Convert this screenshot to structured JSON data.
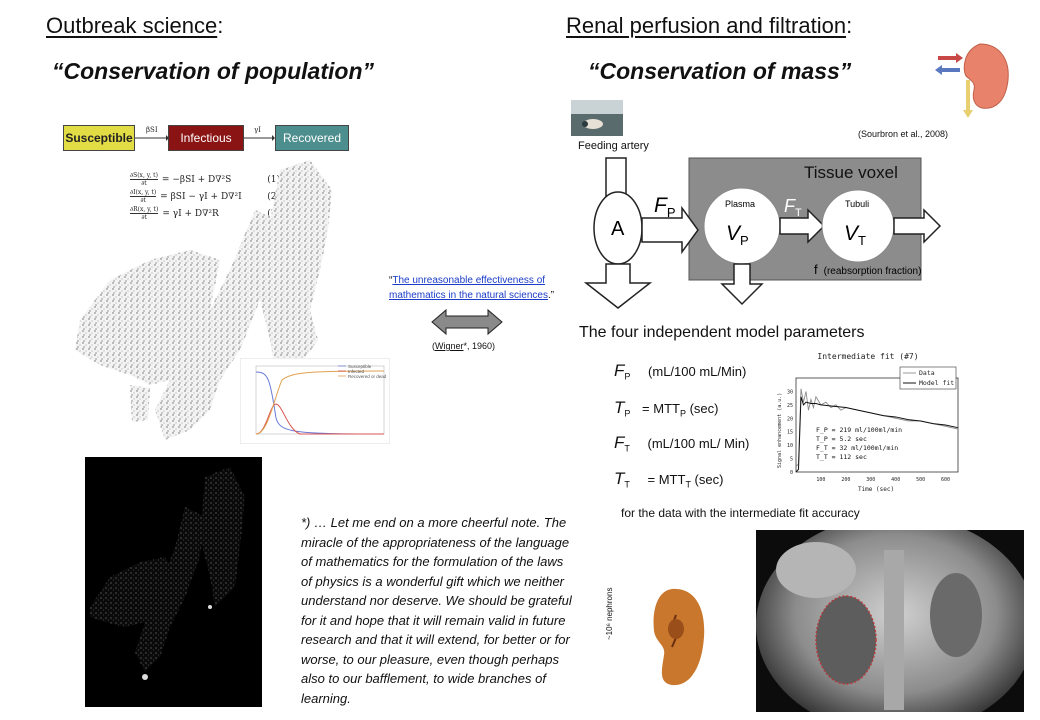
{
  "left": {
    "heading": "Outbreak science",
    "heading_suffix": ":",
    "subheading": "“Conservation of population”",
    "model": {
      "susceptible": "Susceptible",
      "infectious": "Infectious",
      "recovered": "Recovered",
      "beta_label": "βSI",
      "gamma_label": "γI",
      "colors": {
        "susceptible": "#e3dd45",
        "infectious": "#8a1313",
        "recovered": "#4d8e8e"
      }
    },
    "equations": [
      {
        "num": "∂S(x, y, t)",
        "den": "∂t",
        "rhs": "= −βSI + D∇²S",
        "tag": "(1)"
      },
      {
        "num": "∂I(x, y, t)",
        "den": "∂t",
        "rhs": "= βSI − γI + D∇²I",
        "tag": "(2)"
      },
      {
        "num": "∂R(x, y, t)",
        "den": "∂t",
        "rhs": "= γI + D∇²R",
        "tag": "(3)"
      }
    ],
    "sir_legend": [
      "Susceptible",
      "Infected",
      "Recovered or dead"
    ]
  },
  "middle": {
    "quote_open": "“",
    "quote_link": "The unreasonable effectiveness of mathematics in the natural sciences",
    "quote_close": ".”",
    "citation_open": "(",
    "citation_name": "Wigner",
    "citation_rest": "*, 1960)",
    "footnote": "*) … Let me end on a more cheerful note. The miracle of the appropriateness of the language of mathematics for the formulation of the laws of physics is a wonderful gift which we neither understand nor deserve. We should be grateful for it and hope that it will remain valid in future research and that it will extend, for better or for worse, to our pleasure, even though perhaps also to our bafflement, to wide branches of learning."
  },
  "right": {
    "heading": "Renal perfusion and filtration",
    "heading_suffix": ":",
    "subheading": "“Conservation of mass”",
    "citation": "(Sourbron et al., 2008)",
    "diagram": {
      "feeding_artery": "Feeding artery",
      "A": "A",
      "FP": "F",
      "FP_sub": "P",
      "tissue_voxel": "Tissue voxel",
      "plasma": "Plasma",
      "VP": "V",
      "VP_sub": "P",
      "FT": "F",
      "FT_sub": "T",
      "tubuli": "Tubuli",
      "VT": "V",
      "VT_sub": "T",
      "f_label": "f",
      "reabsorption": "(reabsorption fraction)"
    },
    "params_title": "The four independent model parameters",
    "params": [
      {
        "sym": "F",
        "sub": "P",
        "text": "(mL/100 mL/Min)"
      },
      {
        "sym": "T",
        "sub": "P",
        "text": "= MTT",
        "text_sub": "P",
        "text_after": " (sec)"
      },
      {
        "sym": "F",
        "sub": "T",
        "text": "(mL/100 mL/ Min)"
      },
      {
        "sym": "T",
        "sub": "T",
        "text": "= MTT",
        "text_sub": "T",
        "text_after": " (sec)"
      }
    ],
    "params_footer": "for the data with the intermediate fit accuracy",
    "nephrons_label": "~10⁶ nephrons"
  },
  "chart_data": {
    "type": "line",
    "title": "Intermediate fit (#7)",
    "xlabel": "Time (sec)",
    "ylabel": "Signal enhancement (a.u.)",
    "xlim": [
      0,
      650
    ],
    "ylim": [
      0,
      35
    ],
    "x_ticks": [
      "100",
      "200",
      "300",
      "400",
      "500",
      "600"
    ],
    "y_ticks": [
      "0",
      "5",
      "10",
      "15",
      "20",
      "25",
      "30"
    ],
    "legend": [
      "Data",
      "Model fit"
    ],
    "annotations": [
      "F_P = 219 ml/100ml/min",
      "T_P = 5.2 sec",
      "F_T = 32 ml/100ml/min",
      "T_T = 112 sec"
    ],
    "series": [
      {
        "name": "Data",
        "x": [
          0,
          10,
          20,
          30,
          40,
          50,
          60,
          70,
          80,
          100,
          120,
          140,
          160,
          180,
          200,
          250,
          300,
          350,
          400,
          450,
          500,
          550,
          600,
          650
        ],
        "y": [
          2,
          3,
          31,
          26,
          30,
          23,
          27,
          24,
          28,
          25,
          26,
          24,
          25,
          23,
          24,
          23,
          22,
          21,
          20,
          19,
          19,
          18,
          17,
          16
        ]
      },
      {
        "name": "Model fit",
        "x": [
          0,
          10,
          20,
          30,
          40,
          60,
          80,
          100,
          150,
          200,
          250,
          300,
          350,
          400,
          450,
          500,
          550,
          600,
          650
        ],
        "y": [
          0,
          1,
          28,
          25,
          26,
          25.5,
          25.5,
          25,
          24.5,
          24,
          23,
          22,
          21,
          20.5,
          19.5,
          19,
          18,
          17.5,
          16.5
        ]
      }
    ]
  }
}
